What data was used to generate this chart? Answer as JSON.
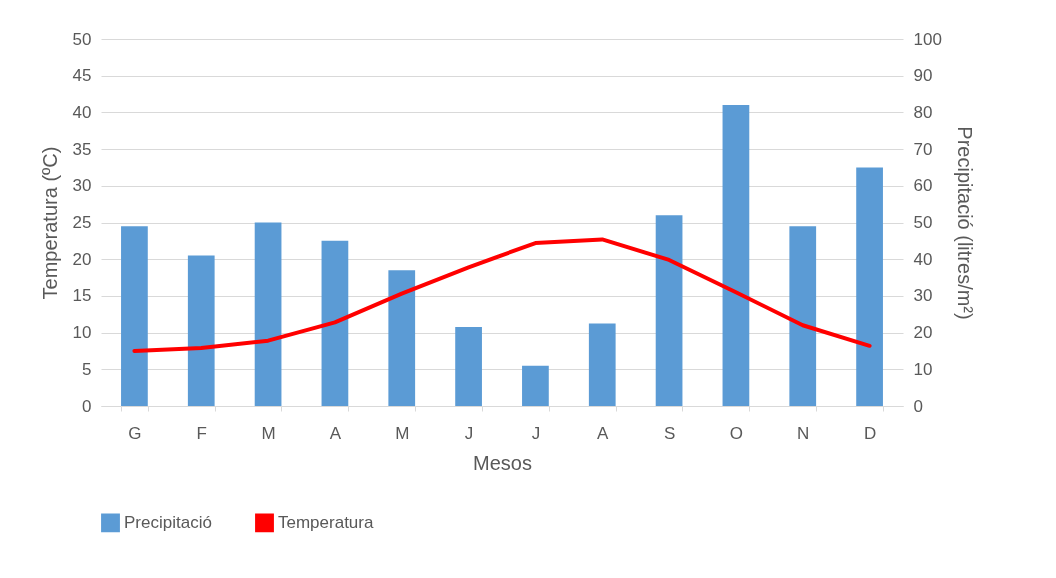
{
  "chart_data": {
    "type": "bar",
    "xlabel": "Mesos",
    "ylabel": "Temperatura (ºC)",
    "y2label": "Precipitació (litres/m²)",
    "categories": [
      "G",
      "F",
      "M",
      "A",
      "M",
      "J",
      "J",
      "A",
      "S",
      "O",
      "N",
      "D"
    ],
    "series": [
      {
        "name": "Precipitació",
        "axis": "y2",
        "color": "#5b9bd5",
        "values": [
          49,
          41,
          50,
          45,
          37,
          21.5,
          11,
          22.5,
          52,
          82,
          49,
          65
        ]
      },
      {
        "name": "Temperatura",
        "type": "line",
        "color": "#ff0000",
        "values": [
          7.5,
          7.9,
          8.9,
          11.4,
          15.3,
          18.9,
          22.2,
          22.7,
          19.9,
          15.5,
          11,
          8.2
        ]
      }
    ],
    "ylim": [
      0,
      50
    ],
    "yticks": [
      0,
      5,
      10,
      15,
      20,
      25,
      30,
      35,
      40,
      45,
      50
    ],
    "y2lim": [
      0,
      100
    ],
    "y2ticks": [
      0,
      10,
      20,
      30,
      40,
      50,
      60,
      70,
      80,
      90,
      100
    ],
    "grid": "y",
    "legend": "bottom"
  }
}
